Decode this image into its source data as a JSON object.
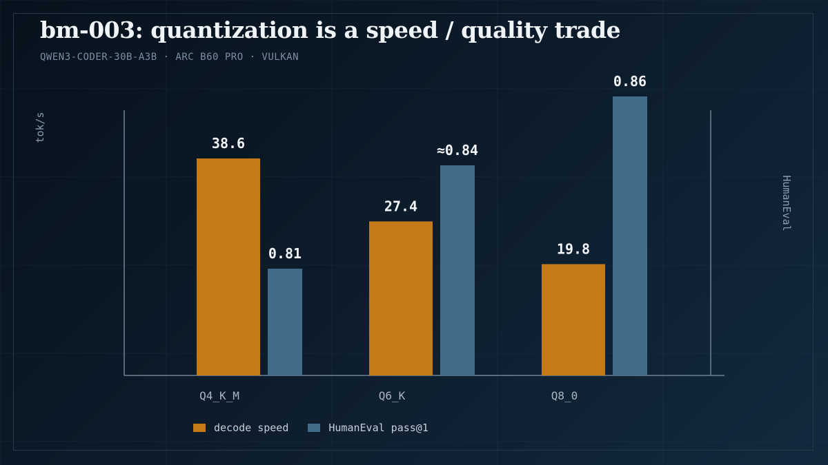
{
  "title": "bm-003: quantization is a speed / quality trade",
  "subtitle": "QWEN3-CODER-30B-A3B · ARC B60 PRO · VULKAN",
  "chart_data": {
    "type": "bar",
    "categories": [
      "Q4_K_M",
      "Q6_K",
      "Q8_0"
    ],
    "ylabel_left": "tok/s",
    "ylabel_right": "HumanEval",
    "series": [
      {
        "name": "decode speed",
        "axis": "left",
        "color": "#c47a17",
        "values": [
          38.6,
          27.4,
          19.8
        ],
        "labels": [
          "38.6",
          "27.4",
          "19.8"
        ]
      },
      {
        "name": "HumanEval pass@1",
        "axis": "right",
        "color": "#436b8a",
        "values": [
          0.81,
          0.84,
          0.86
        ],
        "labels": [
          "0.81",
          "≈0.84",
          "0.86"
        ]
      }
    ],
    "grid": false,
    "legend_position": "bottom-left"
  }
}
